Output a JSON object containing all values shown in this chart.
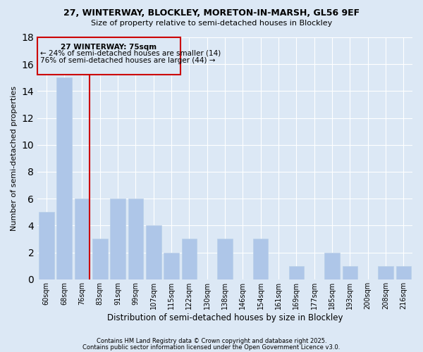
{
  "title1": "27, WINTERWAY, BLOCKLEY, MORETON-IN-MARSH, GL56 9EF",
  "title2": "Size of property relative to semi-detached houses in Blockley",
  "xlabel": "Distribution of semi-detached houses by size in Blockley",
  "ylabel": "Number of semi-detached properties",
  "categories": [
    "60sqm",
    "68sqm",
    "76sqm",
    "83sqm",
    "91sqm",
    "99sqm",
    "107sqm",
    "115sqm",
    "122sqm",
    "130sqm",
    "138sqm",
    "146sqm",
    "154sqm",
    "161sqm",
    "169sqm",
    "177sqm",
    "185sqm",
    "193sqm",
    "200sqm",
    "208sqm",
    "216sqm"
  ],
  "values": [
    5,
    15,
    6,
    3,
    6,
    6,
    4,
    2,
    3,
    0,
    3,
    0,
    3,
    0,
    1,
    0,
    2,
    1,
    0,
    1,
    1
  ],
  "bar_color": "#aec6e8",
  "bar_edge_color": "#b8cfe8",
  "highlight_index": 2,
  "highlight_line_color": "#cc0000",
  "ylim": [
    0,
    18
  ],
  "yticks": [
    0,
    2,
    4,
    6,
    8,
    10,
    12,
    14,
    16,
    18
  ],
  "annotation_title": "27 WINTERWAY: 75sqm",
  "annotation_line1": "← 24% of semi-detached houses are smaller (14)",
  "annotation_line2": "76% of semi-detached houses are larger (44) →",
  "annotation_box_color": "#cc0000",
  "footer1": "Contains HM Land Registry data © Crown copyright and database right 2025.",
  "footer2": "Contains public sector information licensed under the Open Government Licence v3.0.",
  "bg_color": "#dce8f5",
  "grid_color": "#ffffff"
}
